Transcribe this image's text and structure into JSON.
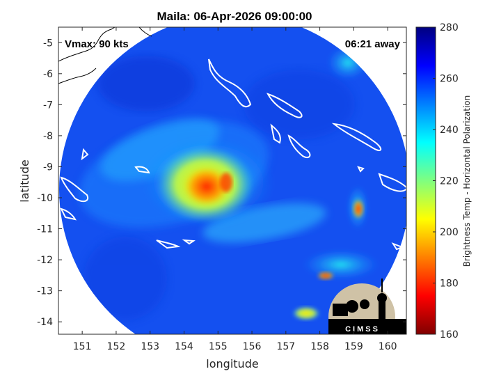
{
  "chart_data": {
    "type": "heatmap",
    "title": "Maila: 06-Apr-2026 09:00:00",
    "xlabel": "longitude",
    "ylabel": "latitude",
    "xlim": [
      150.3,
      160.55
    ],
    "ylim": [
      -14.4,
      -4.5
    ],
    "xticks": [
      151,
      152,
      153,
      154,
      155,
      156,
      157,
      158,
      159,
      160
    ],
    "yticks": [
      -5,
      -6,
      -7,
      -8,
      -9,
      -10,
      -11,
      -12,
      -13,
      -14
    ],
    "annotations": {
      "intensity": "Vmax: 90 kts",
      "time_away": "06:21 away"
    },
    "colorbar": {
      "label": "Brightness Temp - Horizontal Polarization",
      "range": [
        160,
        280
      ],
      "ticks": [
        280,
        260,
        240,
        220,
        200,
        180,
        160
      ],
      "colormap": "jet"
    },
    "grid": false,
    "swath": {
      "center_lon": 155.4,
      "center_lat": -9.85,
      "background_temp": 262
    },
    "features": [
      {
        "name": "storm-eyewall",
        "lon": 154.8,
        "lat": -9.9,
        "temp": 185
      },
      {
        "name": "inner-rainband",
        "lon": 155.2,
        "lat": -9.6,
        "temp": 222
      },
      {
        "name": "convection-east",
        "lon": 159.0,
        "lat": -10.3,
        "temp": 190
      },
      {
        "name": "convection-southeast",
        "lon": 158.2,
        "lat": -12.5,
        "temp": 200
      },
      {
        "name": "spiral-band-outer",
        "lon": 153.0,
        "lat": -8.6,
        "temp": 245
      }
    ]
  },
  "logo": {
    "text": "CIMSS"
  }
}
